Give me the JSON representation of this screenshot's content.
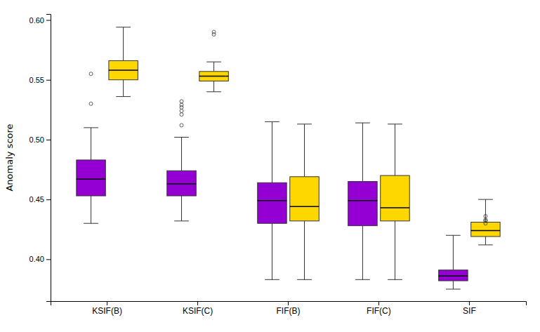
{
  "chart_data": {
    "type": "box",
    "ylabel": "Anomaly score",
    "categories": [
      "KSIF(B)",
      "KSIF(C)",
      "FIF(B)",
      "FIF(C)",
      "SIF"
    ],
    "ylim": [
      0.365,
      0.605
    ],
    "yticks": [
      {
        "value": 0.4,
        "label": "0.40"
      },
      {
        "value": 0.45,
        "label": "0.45"
      },
      {
        "value": 0.5,
        "label": "0.50"
      },
      {
        "value": 0.55,
        "label": "0.55"
      },
      {
        "value": 0.6,
        "label": "0.60"
      }
    ],
    "grid": false,
    "series": [
      {
        "color": "#9400D3",
        "values": [
          {
            "low": 0.43,
            "q1": 0.453,
            "median": 0.467,
            "q3": 0.483,
            "high": 0.51,
            "fliers": [
              0.53,
              0.555
            ]
          },
          {
            "low": 0.432,
            "q1": 0.453,
            "median": 0.463,
            "q3": 0.474,
            "high": 0.502,
            "fliers": [
              0.512,
              0.521,
              0.524,
              0.527,
              0.529,
              0.532
            ]
          },
          {
            "low": 0.383,
            "q1": 0.43,
            "median": 0.449,
            "q3": 0.464,
            "high": 0.515,
            "fliers": []
          },
          {
            "low": 0.383,
            "q1": 0.428,
            "median": 0.449,
            "q3": 0.465,
            "high": 0.514,
            "fliers": []
          },
          {
            "low": 0.375,
            "q1": 0.382,
            "median": 0.386,
            "q3": 0.391,
            "high": 0.42,
            "fliers": []
          }
        ]
      },
      {
        "color": "#FFD700",
        "values": [
          {
            "low": 0.536,
            "q1": 0.55,
            "median": 0.558,
            "q3": 0.566,
            "high": 0.594,
            "fliers": []
          },
          {
            "low": 0.54,
            "q1": 0.549,
            "median": 0.553,
            "q3": 0.557,
            "high": 0.565,
            "fliers": [
              0.588,
              0.59
            ]
          },
          {
            "low": 0.383,
            "q1": 0.432,
            "median": 0.444,
            "q3": 0.469,
            "high": 0.513,
            "fliers": []
          },
          {
            "low": 0.383,
            "q1": 0.432,
            "median": 0.443,
            "q3": 0.47,
            "high": 0.513,
            "fliers": []
          },
          {
            "low": 0.412,
            "q1": 0.419,
            "median": 0.424,
            "q3": 0.431,
            "high": 0.45,
            "fliers": [
              0.43,
              0.432,
              0.433,
              0.436
            ]
          }
        ]
      }
    ]
  }
}
